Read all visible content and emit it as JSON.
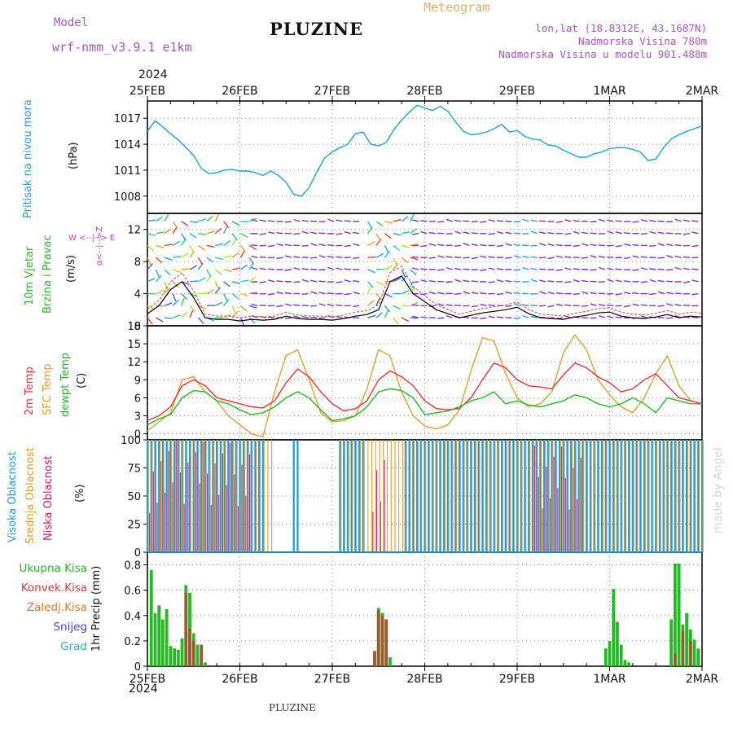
{
  "header": {
    "model_label": "Model",
    "model_name": "wrf-nmm_v3.9.1  e1km",
    "title": "PLUZINE",
    "meteogram_label": "Meteogram",
    "lonlat": "lon,lat (18.8312E, 43.1687N)",
    "elevation": "Nadmorska Visina 780m",
    "elevation_model": "Nadmorska Visina u modelu 901.488m",
    "year_top": "2024",
    "year_bottom": "2024",
    "footer_title": "PLUZINE",
    "watermark": "made by Angel"
  },
  "colors": {
    "pressure": "#1ea0e6",
    "temp2m": "#ee3333",
    "sfc": "#e0a030",
    "dew": "#22bb22",
    "high_cloud": "#1e9be0",
    "mid_cloud": "#e0a030",
    "low_cloud": "#cc2266",
    "precip_total": "#22bb22",
    "precip_conv": "#ee3333",
    "precip_frz": "#ee7722",
    "snow": "#4444dd",
    "grad": "#22bbbb",
    "wind_axis": "#bb44cc"
  },
  "panel_labels": {
    "pressure": {
      "name": "Pritisak na nivou mora",
      "unit": "(hPa)"
    },
    "wind": {
      "name1": "10m Vjetar",
      "name2": "Brzina i Pravac",
      "unit": "(m/s)",
      "compass_ns": "α<--|-->Z",
      "compass_we": "W <--|--> E"
    },
    "temp": {
      "t2m": "2m Temp",
      "sfc": "SFC Temp",
      "dew": "dewpt Temp",
      "unit": "(C)"
    },
    "cloud": {
      "high": "Visoka Oblacnost",
      "mid": "Srednja Oblacnost",
      "low": "Niska Oblacnost",
      "unit": "(%)"
    },
    "precip": {
      "unit": "1hr Precip (mm)"
    }
  },
  "precip_legend": [
    {
      "label": "Ukupna Kisa",
      "color": "#22bb22"
    },
    {
      "label": "Konvek.Kisa",
      "color": "#ee3333"
    },
    {
      "label": "Zaledj.Kisa",
      "color": "#ee7722"
    },
    {
      "label": "Snijeg",
      "color": "#4444dd"
    },
    {
      "label": "Grad",
      "color": "#22bbbb"
    }
  ],
  "chart_data": {
    "x_dates": [
      "25FEB",
      "26FEB",
      "27FEB",
      "28FEB",
      "29FEB",
      "1MAR",
      "2MAR"
    ],
    "x_unit": "hours from 25FEB 00UTC",
    "x_range": [
      0,
      144
    ],
    "panels": [
      {
        "id": "pressure",
        "type": "line",
        "ylim": [
          1006,
          1019
        ],
        "yticks": [
          1008,
          1011,
          1014,
          1017
        ],
        "series": [
          {
            "name": "Pritisak na nivou mora",
            "x": [
              0,
              2,
              4,
              6,
              8,
              10,
              12,
              14,
              16,
              18,
              20,
              22,
              24,
              26,
              28,
              30,
              32,
              34,
              36,
              38,
              40,
              42,
              44,
              46,
              48,
              50,
              52,
              54,
              56,
              58,
              60,
              62,
              64,
              66,
              68,
              70,
              72,
              74,
              76,
              78,
              80,
              82,
              84,
              86,
              88,
              90,
              92,
              94,
              96,
              98,
              100,
              102,
              104,
              106,
              108,
              110,
              112,
              114,
              116,
              118,
              120,
              122,
              124,
              126,
              128,
              130,
              132,
              134,
              136,
              138,
              140,
              142,
              144
            ],
            "y": [
              1015.5,
              1016.7,
              1016,
              1015.2,
              1014.5,
              1013.6,
              1012.7,
              1011.2,
              1010.6,
              1010.7,
              1011,
              1011.1,
              1010.9,
              1010.9,
              1010.7,
              1010.4,
              1010.9,
              1010.4,
              1009.6,
              1008.2,
              1008,
              1009,
              1010.8,
              1012.4,
              1013.1,
              1013.6,
              1014,
              1015.2,
              1015.4,
              1014,
              1013.8,
              1014.2,
              1015.7,
              1016.8,
              1017.7,
              1018.5,
              1018.2,
              1017.9,
              1018.4,
              1017.8,
              1016.6,
              1015.5,
              1015.1,
              1015.2,
              1015.4,
              1015.8,
              1016.3,
              1015.4,
              1015.6,
              1014.9,
              1014.6,
              1014.5,
              1013.9,
              1013.8,
              1013.3,
              1012.9,
              1012.5,
              1012.5,
              1012.9,
              1013.1,
              1013.5,
              1013.6,
              1013.6,
              1013.4,
              1013.1,
              1012.1,
              1012.3,
              1013.6,
              1014.6,
              1015.1,
              1015.5,
              1015.8,
              1016.1
            ]
          }
        ]
      },
      {
        "id": "wind",
        "type": "line+barbs",
        "ylim": [
          0,
          14
        ],
        "yticks": [
          0,
          4,
          8,
          12
        ],
        "series": [
          {
            "name": "10m wind speed",
            "x": [
              0,
              3,
              6,
              9,
              12,
              15,
              18,
              21,
              24,
              27,
              30,
              33,
              36,
              39,
              42,
              45,
              48,
              51,
              54,
              57,
              60,
              63,
              66,
              69,
              72,
              75,
              78,
              81,
              84,
              87,
              90,
              93,
              96,
              99,
              102,
              105,
              108,
              111,
              114,
              117,
              120,
              123,
              126,
              129,
              132,
              135,
              138,
              141,
              144
            ],
            "y": [
              1.5,
              2.5,
              4.5,
              5.5,
              3.5,
              1,
              0.8,
              0.8,
              0.6,
              0.8,
              0.7,
              0.8,
              1.2,
              0.9,
              0.8,
              0.8,
              0.7,
              0.9,
              1.2,
              1.4,
              2,
              5.5,
              6.2,
              4,
              3,
              2,
              1.5,
              1,
              1.3,
              1.6,
              1.8,
              2,
              2.3,
              1.5,
              1,
              0.9,
              0.8,
              1.1,
              1.3,
              1.6,
              1.7,
              1.2,
              1,
              0.9,
              1.1,
              1.4,
              1,
              1.2,
              1.1
            ]
          }
        ]
      },
      {
        "id": "temperature",
        "type": "line",
        "ylim": [
          -1,
          18
        ],
        "yticks": [
          0,
          3,
          6,
          9,
          12,
          15,
          18
        ],
        "series": [
          {
            "name": "2m Temp",
            "x": [
              0,
              3,
              6,
              9,
              12,
              15,
              18,
              21,
              24,
              27,
              30,
              33,
              36,
              39,
              42,
              45,
              48,
              51,
              54,
              57,
              60,
              63,
              66,
              69,
              72,
              75,
              78,
              81,
              84,
              87,
              90,
              93,
              96,
              99,
              102,
              105,
              108,
              111,
              114,
              117,
              120,
              123,
              126,
              129,
              132,
              135,
              138,
              141,
              144
            ],
            "y": [
              2.2,
              3,
              4.5,
              8,
              9,
              8,
              6,
              5.5,
              5,
              4.5,
              4.3,
              5.5,
              8.5,
              10.8,
              9.5,
              7,
              5,
              3.8,
              4.2,
              5.5,
              9,
              10.5,
              9.5,
              8,
              5.5,
              4.2,
              4,
              4.2,
              6,
              9,
              11.8,
              11,
              9,
              8,
              7.8,
              7.5,
              9.8,
              11.8,
              11,
              9.5,
              8.5,
              7,
              7.5,
              9,
              10,
              8,
              6,
              5.5,
              5
            ]
          },
          {
            "name": "SFC Temp",
            "x": [
              0,
              3,
              6,
              9,
              12,
              15,
              18,
              21,
              24,
              27,
              30,
              33,
              36,
              39,
              42,
              45,
              48,
              51,
              54,
              57,
              60,
              63,
              66,
              69,
              72,
              75,
              78,
              81,
              84,
              87,
              90,
              93,
              96,
              99,
              102,
              105,
              108,
              111,
              114,
              117,
              120,
              123,
              126,
              129,
              132,
              135,
              138,
              141,
              144
            ],
            "y": [
              0.5,
              2,
              3.5,
              9,
              9.5,
              7,
              5.5,
              3,
              1.5,
              0,
              -0.5,
              7,
              13,
              14,
              9,
              3.5,
              2,
              2.2,
              3,
              7.5,
              14,
              13,
              7,
              3,
              1.3,
              0.8,
              1.5,
              4,
              10.5,
              16,
              15.5,
              10,
              6,
              4.5,
              5,
              7,
              13.5,
              16.5,
              14,
              9,
              6.5,
              4.5,
              3.5,
              6,
              10,
              13,
              8,
              5.5,
              5
            ]
          },
          {
            "name": "dewpt Temp",
            "x": [
              0,
              3,
              6,
              9,
              12,
              15,
              18,
              21,
              24,
              27,
              30,
              33,
              36,
              39,
              42,
              45,
              48,
              51,
              54,
              57,
              60,
              63,
              66,
              69,
              72,
              75,
              78,
              81,
              84,
              87,
              90,
              93,
              96,
              99,
              102,
              105,
              108,
              111,
              114,
              117,
              120,
              123,
              126,
              129,
              132,
              135,
              138,
              141,
              144
            ],
            "y": [
              1.5,
              2.5,
              3.2,
              6,
              7.2,
              7,
              5.5,
              5,
              4,
              3.2,
              3.5,
              4.5,
              6,
              7,
              6,
              4,
              2.2,
              2.5,
              3,
              4.5,
              7,
              7.5,
              7.2,
              6,
              3.2,
              3.5,
              3.8,
              4.5,
              5.5,
              6,
              7,
              5,
              5.5,
              4.8,
              4.5,
              5,
              5.5,
              6.5,
              6,
              5,
              4.5,
              5,
              6,
              5,
              3.5,
              6,
              5.5,
              5,
              5
            ]
          }
        ]
      },
      {
        "id": "cloud",
        "type": "bar",
        "ylim": [
          0,
          100
        ],
        "yticks": [
          0,
          25,
          50,
          75,
          100
        ],
        "series": [
          {
            "name": "Visoka Oblacnost",
            "segments_hours": [
              [
                0,
                30
              ],
              [
                38,
                39
              ],
              [
                50,
                56
              ],
              [
                67,
                144
              ]
            ],
            "level": 100
          },
          {
            "name": "Srednja Oblacnost",
            "segments_hours": [
              [
                0,
                32
              ],
              [
                50,
                70
              ],
              [
                72,
                144
              ]
            ],
            "level": 100
          },
          {
            "name": "Niska Oblacnost",
            "segments_hours": [
              [
                0,
                10
              ],
              [
                12,
                26
              ],
              [
                58,
                61
              ],
              [
                100,
                112
              ]
            ],
            "level": 100
          }
        ]
      },
      {
        "id": "precip",
        "type": "bar",
        "ylim": [
          0,
          0.9
        ],
        "yticks": [
          0,
          0.2,
          0.4,
          0.6,
          0.8
        ],
        "series": [
          {
            "name": "Ukupna Kisa",
            "x": [
              1,
              2,
              3,
              4,
              5,
              6,
              7,
              8,
              9,
              10,
              11,
              12,
              13,
              14,
              15,
              59,
              60,
              61,
              62,
              63,
              119,
              120,
              121,
              122,
              123,
              124,
              125,
              136,
              137,
              138,
              139,
              140,
              141,
              142,
              143
            ],
            "y": [
              0.76,
              0.42,
              0.48,
              0.37,
              0.45,
              0.16,
              0.14,
              0.13,
              0.22,
              0.64,
              0.58,
              0.26,
              0.17,
              0.06,
              0.03,
              0.12,
              0.46,
              0.42,
              0.37,
              0.07,
              0.14,
              0.2,
              0.61,
              0.35,
              0.17,
              0.05,
              0.03,
              0.37,
              0.81,
              0.81,
              0.33,
              0.42,
              0.29,
              0.21,
              0.14
            ]
          },
          {
            "name": "Konvek.Kisa",
            "x": [
              10,
              11,
              12,
              14,
              59,
              60,
              61,
              62,
              137,
              139,
              141
            ],
            "y": [
              0.58,
              0.3,
              0.2,
              0.17,
              0.12,
              0.44,
              0.4,
              0.37,
              0.1,
              0.28,
              0.2
            ]
          }
        ]
      }
    ]
  }
}
